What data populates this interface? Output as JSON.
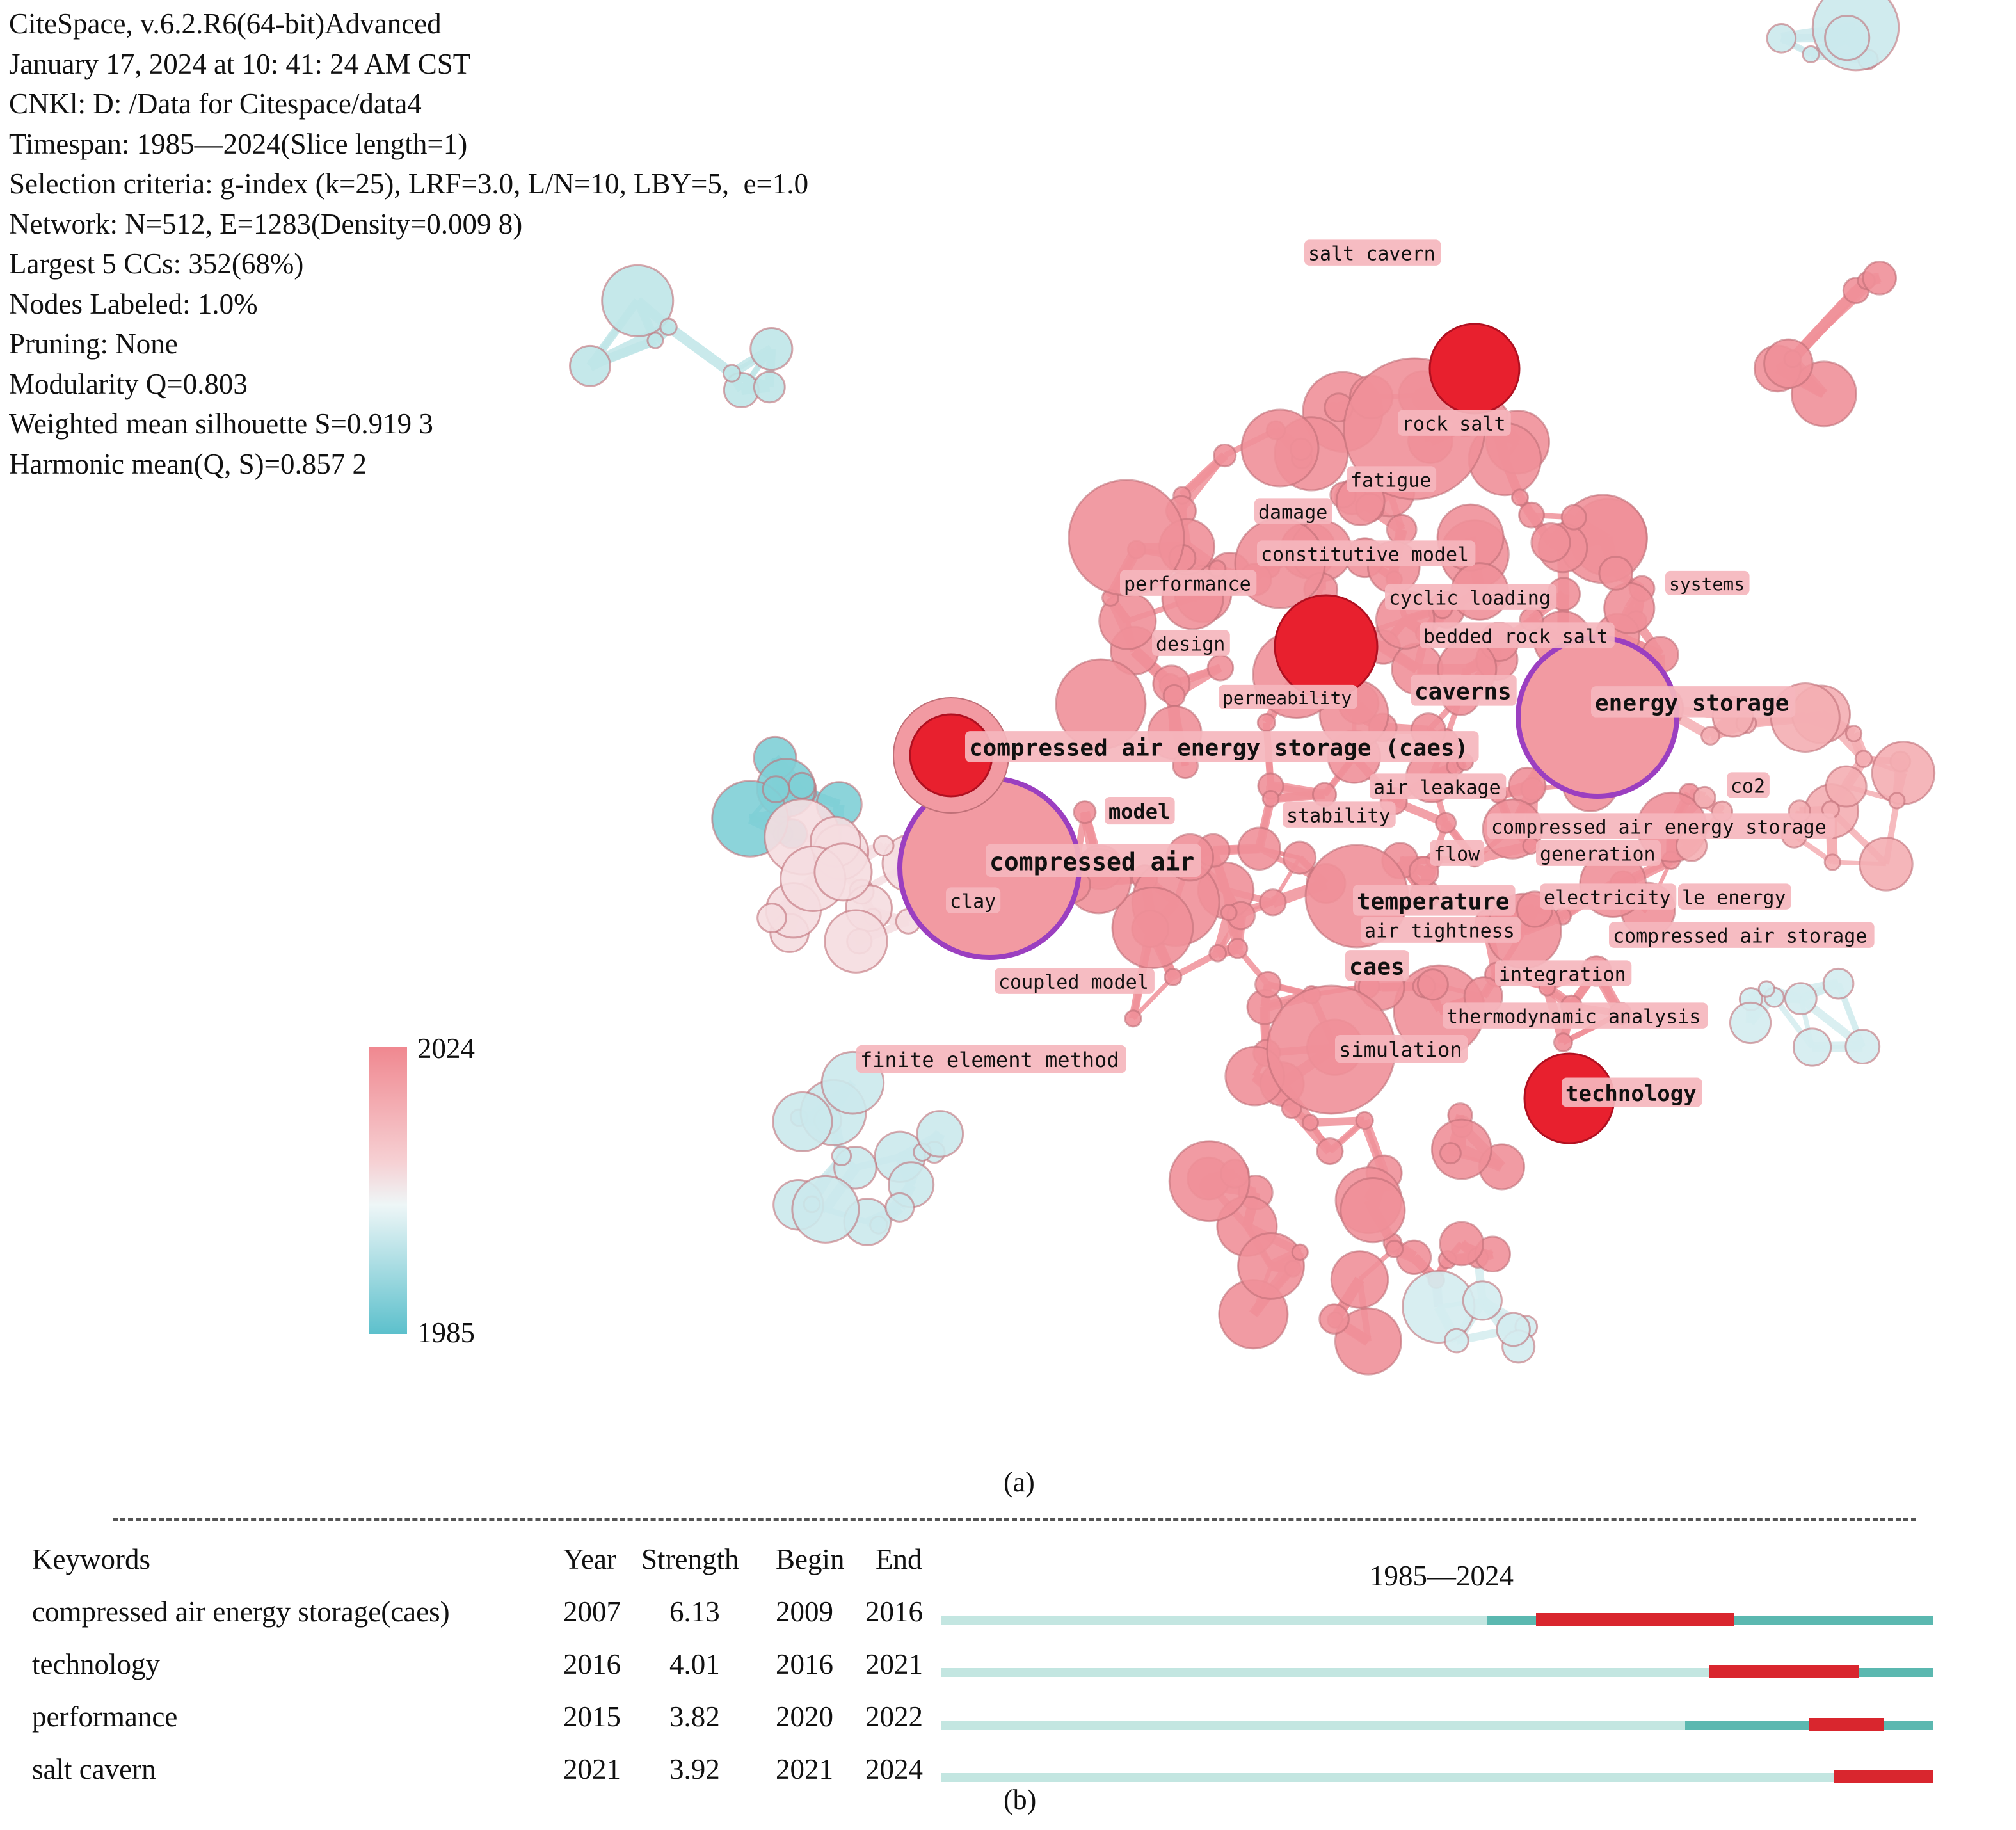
{
  "info": {
    "lines": [
      "CiteSpace, v.6.2.R6(64-bit)Advanced",
      "January 17, 2024 at 10: 41: 24 AM CST",
      "CNKl: D: /Data for Citespace/data4",
      "Timespan: 1985—2024(Slice length=1)",
      "Selection criteria: g-index (k=25), LRF=3.0, L/N=10, LBY=5,  e=1.0",
      "Network: N=512, E=1283(Density=0.009 8)",
      "Largest 5 CCs: 352(68%)",
      "Nodes Labeled: 1.0%",
      "Pruning: None",
      "Modularity Q=0.803",
      "Weighted mean silhouette S=0.919 3",
      "Harmonic mean(Q, S)=0.857 2"
    ]
  },
  "legend": {
    "max": "2024",
    "min": "1985",
    "colors": {
      "new": "#f08890",
      "mid": "#eef6f7",
      "old": "#5cc0cc"
    }
  },
  "network": {
    "labels": [
      "salt cavern",
      "rock salt",
      "fatigue",
      "damage",
      "constitutive model",
      "performance",
      "cyclic loading",
      "systems",
      "bedded rock salt",
      "design",
      "permeability",
      "caverns",
      "energy storage",
      "compressed air energy storage (caes)",
      "air leakage",
      "co2",
      "model",
      "stability",
      "compressed air energy storage",
      "compressed air",
      "flow",
      "generation",
      "clay",
      "temperature",
      "electricity",
      "le energy",
      "air tightness",
      "compressed air storage",
      "caes",
      "integration",
      "coupled model",
      "thermodynamic analysis",
      "simulation",
      "finite element method",
      "technology"
    ],
    "colors": {
      "burst_node": "#e8202e",
      "centrality_ring": "#9b3fc0",
      "recent_edge": "#ee8a92",
      "old_edge": "#b9e4e8"
    }
  },
  "captions": {
    "a": "(a)",
    "b": "(b)"
  },
  "chart_data": {
    "type": "table",
    "title": "",
    "period": "1985—2024",
    "range": [
      1985,
      2024
    ],
    "columns": [
      "Keywords",
      "Year",
      "Strength",
      "Begin",
      "End"
    ],
    "rows": [
      {
        "keyword": "compressed air energy storage(caes)",
        "year": "2007",
        "strength": "6.13",
        "begin": "2009",
        "end": "2016"
      },
      {
        "keyword": "technology",
        "year": "2016",
        "strength": "4.01",
        "begin": "2016",
        "end": "2021"
      },
      {
        "keyword": "performance",
        "year": "2015",
        "strength": "3.82",
        "begin": "2020",
        "end": "2022"
      },
      {
        "keyword": "salt cavern",
        "year": "2021",
        "strength": "3.92",
        "begin": "2021",
        "end": "2024"
      }
    ],
    "colors": {
      "base": "#c3e6e1",
      "active": "#5bb8b0",
      "burst": "#d9262e"
    }
  }
}
